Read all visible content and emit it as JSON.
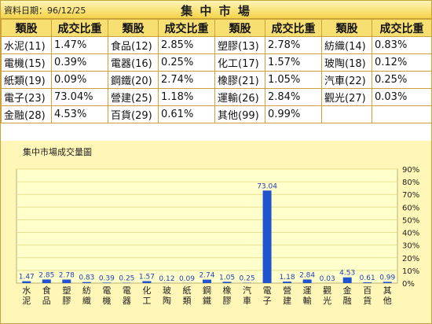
{
  "header": {
    "date_text": "資料日期：96/12/25",
    "title": "集 中 市 場"
  },
  "table": {
    "headers": [
      "類股",
      "成交比重",
      "類股",
      "成交比重",
      "類股",
      "成交比重",
      "類股",
      "成交比重"
    ],
    "rows": [
      [
        "水泥(11)",
        "1.47%",
        "食品(12)",
        "2.85%",
        "塑膠(13)",
        "2.78%",
        "紡織(14)",
        "0.83%"
      ],
      [
        "電機(15)",
        "0.39%",
        "電器(16)",
        "0.25%",
        "化工(17)",
        "1.57%",
        "玻陶(18)",
        "0.12%"
      ],
      [
        "紙類(19)",
        "0.09%",
        "鋼鐵(20)",
        "2.74%",
        "橡膠(21)",
        "1.05%",
        "汽車(22)",
        "0.25%"
      ],
      [
        "電子(23)",
        "73.04%",
        "營建(25)",
        "1.18%",
        "運輸(26)",
        "2.84%",
        "觀光(27)",
        "0.03%"
      ],
      [
        "金融(28)",
        "4.53%",
        "百貨(29)",
        "0.61%",
        "其他(99)",
        "0.99%",
        "",
        ""
      ]
    ]
  },
  "chart_data": {
    "type": "bar",
    "title": "集中市場成交量圖",
    "categories": [
      "水泥",
      "食品",
      "塑膠",
      "紡織",
      "電機",
      "電器",
      "化工",
      "玻陶",
      "紙類",
      "鋼鐵",
      "橡膠",
      "汽車",
      "電子",
      "營建",
      "運輸",
      "觀光",
      "金融",
      "百貨",
      "其他"
    ],
    "values": [
      1.47,
      2.85,
      2.78,
      0.83,
      0.39,
      0.25,
      1.57,
      0.12,
      0.09,
      2.74,
      1.05,
      0.25,
      73.04,
      1.18,
      2.84,
      0.03,
      4.53,
      0.61,
      0.99
    ],
    "value_labels": [
      "1.47",
      "2.85",
      "2.78",
      "0.83",
      "0.39",
      "0.25",
      "1.57",
      "0.12",
      "0.09",
      "2.74",
      "1.05",
      "0.25",
      "73.04",
      "1.18",
      "2.84",
      "0.03",
      "4.53",
      "0.61",
      "0.99"
    ],
    "ylim": [
      0,
      90
    ],
    "yticks": [
      "0%",
      "10%",
      "20%",
      "30%",
      "40%",
      "50%",
      "60%",
      "70%",
      "80%",
      "90%"
    ],
    "grid": true,
    "colors": {
      "bar": "#1f53cf",
      "plot_bg": "#ffffcc",
      "grid": "#e8e08a",
      "label": "#1f3fb0"
    }
  }
}
